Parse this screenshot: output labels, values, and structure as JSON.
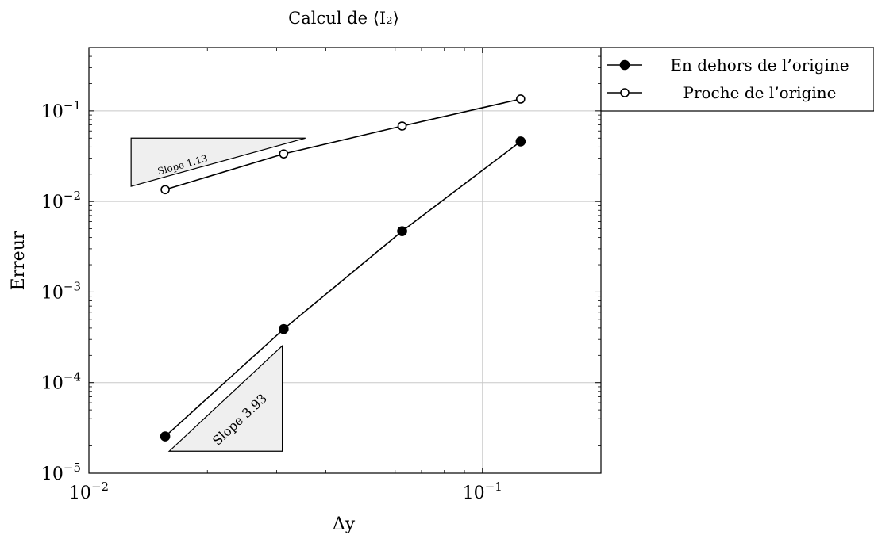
{
  "chart_data": {
    "type": "line",
    "title": "Calcul de ⟨I₂⟩",
    "xlabel": "Δy",
    "ylabel": "Erreur",
    "xscale": "log",
    "yscale": "log",
    "xlim": [
      0.01,
      0.2
    ],
    "ylim": [
      1e-05,
      0.5
    ],
    "grid": true,
    "legend_position": "outside-top-right",
    "x_major_ticks": [
      0.01,
      0.1
    ],
    "x_tick_labels": [
      {
        "base": "10",
        "exp": "−2"
      },
      {
        "base": "10",
        "exp": "−1"
      }
    ],
    "y_major_ticks": [
      1e-05,
      0.0001,
      0.001,
      0.01,
      0.1
    ],
    "y_tick_labels": [
      {
        "base": "10",
        "exp": "−5"
      },
      {
        "base": "10",
        "exp": "−4"
      },
      {
        "base": "10",
        "exp": "−3"
      },
      {
        "base": "10",
        "exp": "−2"
      },
      {
        "base": "10",
        "exp": "−1"
      }
    ],
    "series": [
      {
        "name": "En dehors de l’origine",
        "marker": "filled-circle",
        "color": "#000000",
        "x": [
          0.015625,
          0.03125,
          0.0625,
          0.125
        ],
        "y": [
          2.55e-05,
          0.00039,
          0.0047,
          0.046
        ]
      },
      {
        "name": "Proche de l’origine",
        "marker": "open-circle",
        "color": "#000000",
        "x": [
          0.015625,
          0.03125,
          0.0625,
          0.125
        ],
        "y": [
          0.0135,
          0.0335,
          0.068,
          0.135
        ]
      }
    ],
    "annotations": [
      {
        "text": "Slope 1.13",
        "x_start": 0.0128,
        "x_end": 0.0355,
        "y_top": 0.05,
        "y_bottom": 0.0147,
        "orientation": "upper-left"
      },
      {
        "text": "Slope 3.93",
        "x_start": 0.016,
        "x_end": 0.031,
        "y_top": 0.000255,
        "y_bottom": 1.75e-05,
        "orientation": "lower-right"
      }
    ],
    "colors": {
      "line": "#000000",
      "grid": "#c8c8c8",
      "triangle_fill": "#efefef"
    }
  }
}
